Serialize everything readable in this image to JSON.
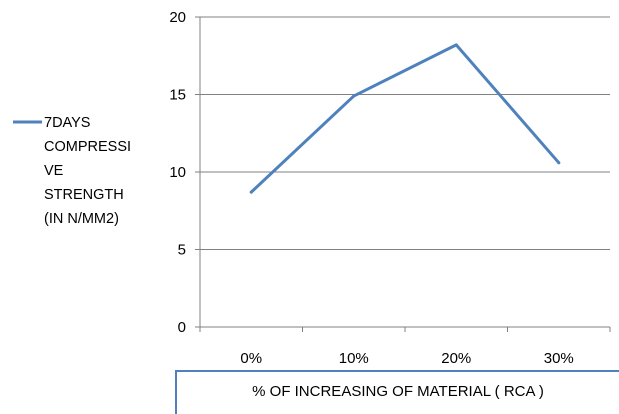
{
  "chart_data": {
    "type": "line",
    "categories": [
      "0%",
      "10%",
      "20%",
      "30%"
    ],
    "series": [
      {
        "name": "7DAYS COMPRESSIVE STRENGTH (IN N/MM2)",
        "values": [
          8.7,
          14.9,
          18.2,
          10.6
        ],
        "color": "#4f81bd"
      }
    ],
    "legend_lines": [
      "7DAYS",
      "COMPRESSI",
      "VE",
      "STRENGTH",
      "(IN N/MM2)"
    ],
    "title": "",
    "xlabel": "% OF INCREASING OF MATERIAL ( RCA )",
    "ylabel": "",
    "ylim": [
      0,
      20
    ],
    "yticks": [
      0,
      5,
      10,
      15,
      20
    ],
    "grid": true,
    "legend_position": "left"
  }
}
